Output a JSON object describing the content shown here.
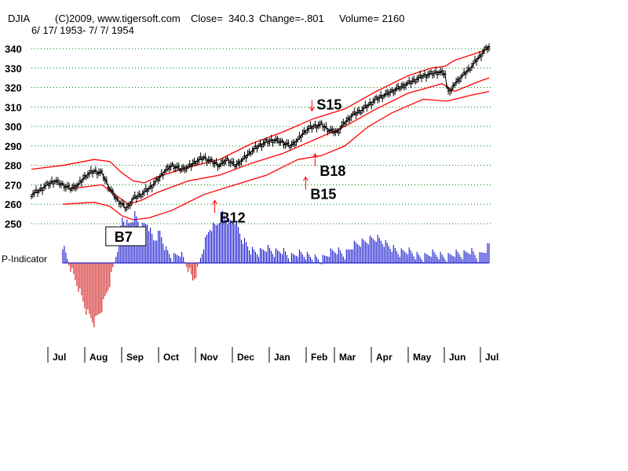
{
  "header": {
    "symbol": "DJIA",
    "copyright": "(C)2009, www.tigersoft.com",
    "close": "Close=  340.3",
    "change": "Change=-.801",
    "volume": "Volume= 2160",
    "date_range": "6/ 17/ 1953- 7/ 7/ 1954"
  },
  "colors": {
    "price": "#000000",
    "band": "#ff0000",
    "grid": "#008000",
    "indicator_positive": "#0000cc",
    "indicator_negative": "#cc0000",
    "arrow": "#ff0000"
  },
  "chart_data": {
    "type": "line",
    "title": "DJIA",
    "xlabel": "",
    "ylabel": "",
    "ylim": [
      250,
      340
    ],
    "y_ticks": [
      "340",
      "330",
      "320",
      "310",
      "300",
      "290",
      "280",
      "270",
      "260",
      "250"
    ],
    "months": [
      "Jul",
      "Aug",
      "Sep",
      "Oct",
      "Nov",
      "Dec",
      "Jan",
      "Feb",
      "Mar",
      "Apr",
      "May",
      "Jun",
      "Jul"
    ],
    "price_series": {
      "name": "DJIA",
      "points": [
        [
          0,
          265
        ],
        [
          5,
          267
        ],
        [
          10,
          270
        ],
        [
          15,
          272
        ],
        [
          20,
          270
        ],
        [
          25,
          268
        ],
        [
          30,
          270
        ],
        [
          35,
          275
        ],
        [
          40,
          277
        ],
        [
          45,
          276
        ],
        [
          50,
          268
        ],
        [
          55,
          262
        ],
        [
          58,
          260
        ],
        [
          60,
          258
        ],
        [
          62,
          259
        ],
        [
          65,
          263
        ],
        [
          70,
          265
        ],
        [
          75,
          268
        ],
        [
          80,
          272
        ],
        [
          85,
          277
        ],
        [
          90,
          280
        ],
        [
          95,
          278
        ],
        [
          100,
          279
        ],
        [
          105,
          282
        ],
        [
          110,
          284
        ],
        [
          115,
          282
        ],
        [
          120,
          280
        ],
        [
          125,
          283
        ],
        [
          130,
          280
        ],
        [
          135,
          283
        ],
        [
          140,
          287
        ],
        [
          145,
          290
        ],
        [
          150,
          292
        ],
        [
          155,
          293
        ],
        [
          160,
          292
        ],
        [
          165,
          290
        ],
        [
          170,
          293
        ],
        [
          175,
          298
        ],
        [
          180,
          300
        ],
        [
          185,
          301
        ],
        [
          190,
          298
        ],
        [
          195,
          297
        ],
        [
          200,
          302
        ],
        [
          205,
          306
        ],
        [
          210,
          308
        ],
        [
          215,
          311
        ],
        [
          220,
          314
        ],
        [
          225,
          316
        ],
        [
          230,
          318
        ],
        [
          235,
          320
        ],
        [
          240,
          322
        ],
        [
          245,
          324
        ],
        [
          250,
          326
        ],
        [
          255,
          327
        ],
        [
          260,
          328
        ],
        [
          264,
          327
        ],
        [
          265,
          320
        ],
        [
          268,
          318
        ],
        [
          270,
          322
        ],
        [
          275,
          326
        ],
        [
          280,
          330
        ],
        [
          283,
          333
        ],
        [
          286,
          336
        ],
        [
          289,
          339
        ],
        [
          292,
          341
        ]
      ]
    },
    "band_series": [
      {
        "name": "Upper band",
        "points": [
          [
            0,
            278
          ],
          [
            20,
            280
          ],
          [
            40,
            283
          ],
          [
            50,
            282
          ],
          [
            58,
            276
          ],
          [
            65,
            272
          ],
          [
            72,
            271
          ],
          [
            80,
            274
          ],
          [
            100,
            279
          ],
          [
            120,
            283
          ],
          [
            140,
            291
          ],
          [
            160,
            297
          ],
          [
            180,
            304
          ],
          [
            200,
            309
          ],
          [
            220,
            318
          ],
          [
            240,
            326
          ],
          [
            255,
            330
          ],
          [
            264,
            331
          ],
          [
            270,
            334
          ],
          [
            285,
            338
          ],
          [
            292,
            340
          ]
        ]
      },
      {
        "name": "Middle band",
        "points": [
          [
            25,
            268
          ],
          [
            45,
            270
          ],
          [
            55,
            264
          ],
          [
            62,
            260
          ],
          [
            70,
            262
          ],
          [
            80,
            266
          ],
          [
            100,
            272
          ],
          [
            120,
            275
          ],
          [
            140,
            281
          ],
          [
            160,
            286
          ],
          [
            180,
            293
          ],
          [
            200,
            300
          ],
          [
            220,
            309
          ],
          [
            240,
            317
          ],
          [
            262,
            322
          ],
          [
            270,
            318
          ],
          [
            285,
            323
          ],
          [
            292,
            325
          ]
        ]
      },
      {
        "name": "Lower band",
        "points": [
          [
            20,
            260
          ],
          [
            40,
            261
          ],
          [
            50,
            259
          ],
          [
            58,
            254
          ],
          [
            65,
            252
          ],
          [
            75,
            253
          ],
          [
            90,
            257
          ],
          [
            110,
            265
          ],
          [
            130,
            270
          ],
          [
            150,
            275
          ],
          [
            170,
            283
          ],
          [
            185,
            285
          ],
          [
            200,
            290
          ],
          [
            215,
            300
          ],
          [
            230,
            307
          ],
          [
            250,
            314
          ],
          [
            265,
            313
          ],
          [
            280,
            316
          ],
          [
            292,
            318
          ]
        ]
      }
    ],
    "indicator_series": {
      "name": "P-Indicator",
      "points": [
        [
          0,
          0.1
        ],
        [
          5,
          0.2
        ],
        [
          10,
          0.35
        ],
        [
          15,
          0.5
        ],
        [
          20,
          0.35
        ],
        [
          25,
          -0.1
        ],
        [
          30,
          -0.5
        ],
        [
          35,
          -0.95
        ],
        [
          40,
          -1.2
        ],
        [
          45,
          -0.9
        ],
        [
          50,
          -0.4
        ],
        [
          55,
          0.3
        ],
        [
          58,
          0.9
        ],
        [
          62,
          0.75
        ],
        [
          66,
          0.95
        ],
        [
          70,
          0.7
        ],
        [
          74,
          0.8
        ],
        [
          78,
          0.45
        ],
        [
          82,
          0.6
        ],
        [
          86,
          0.25
        ],
        [
          90,
          0.1
        ],
        [
          95,
          0.2
        ],
        [
          100,
          -0.1
        ],
        [
          103,
          -0.35
        ],
        [
          106,
          -0.15
        ],
        [
          110,
          0.35
        ],
        [
          114,
          0.7
        ],
        [
          118,
          0.75
        ],
        [
          122,
          1.0
        ],
        [
          126,
          0.8
        ],
        [
          130,
          0.85
        ],
        [
          134,
          0.5
        ],
        [
          140,
          0.25
        ],
        [
          145,
          0.2
        ],
        [
          150,
          0.3
        ],
        [
          155,
          0.2
        ],
        [
          160,
          0.25
        ],
        [
          165,
          0.1
        ],
        [
          170,
          0.2
        ],
        [
          175,
          0.15
        ],
        [
          180,
          0.1
        ],
        [
          185,
          0.05
        ],
        [
          190,
          0.2
        ],
        [
          195,
          0.25
        ],
        [
          200,
          0.15
        ],
        [
          205,
          0.35
        ],
        [
          210,
          0.4
        ],
        [
          215,
          0.45
        ],
        [
          220,
          0.5
        ],
        [
          225,
          0.4
        ],
        [
          230,
          0.3
        ],
        [
          235,
          0.2
        ],
        [
          240,
          0.25
        ],
        [
          245,
          0.15
        ],
        [
          250,
          0.1
        ],
        [
          255,
          0.2
        ],
        [
          260,
          0.15
        ],
        [
          265,
          0.1
        ],
        [
          270,
          0.2
        ],
        [
          275,
          0.15
        ],
        [
          280,
          0.25
        ],
        [
          285,
          0.1
        ],
        [
          292,
          0.35
        ]
      ]
    },
    "indicator_label": "P-Indicator",
    "annotations": [
      {
        "text": "B7",
        "x": 60,
        "y": 250,
        "boxed": true
      },
      {
        "text": "B12",
        "x": 117,
        "y": 262,
        "arrow": "up"
      },
      {
        "text": "B15",
        "x": 175,
        "y": 274,
        "arrow": "up"
      },
      {
        "text": "B18",
        "x": 181,
        "y": 286,
        "arrow": "up"
      },
      {
        "text": "S15",
        "x": 179,
        "y": 308,
        "arrow": "down"
      }
    ]
  }
}
